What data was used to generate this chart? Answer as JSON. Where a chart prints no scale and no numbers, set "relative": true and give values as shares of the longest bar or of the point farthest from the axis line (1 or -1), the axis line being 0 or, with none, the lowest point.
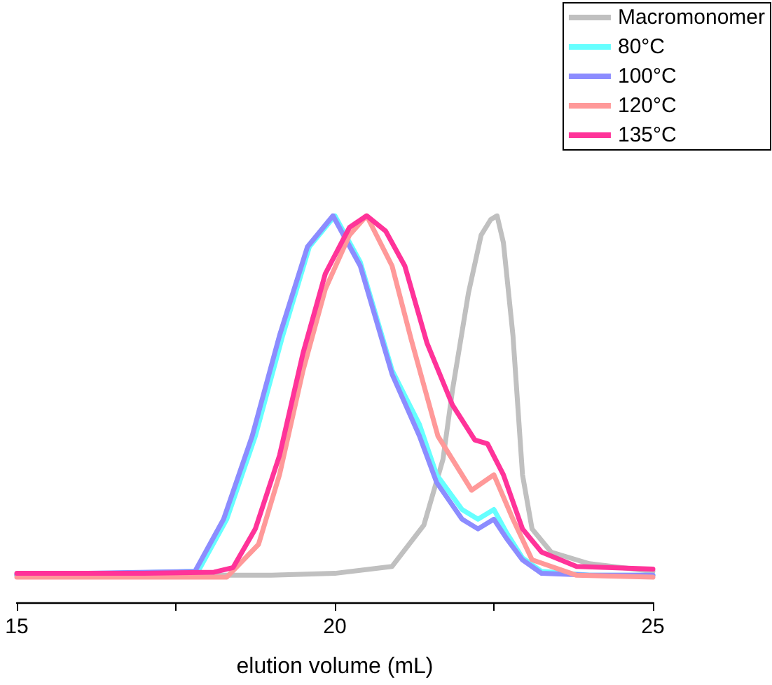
{
  "chart_data": {
    "type": "line",
    "relative": true,
    "xlabel": "elution volume (mL)",
    "xlim": [
      15,
      25
    ],
    "xticks": [
      15,
      {
        "value": 17.5,
        "label": null
      },
      20,
      {
        "value": 22.5,
        "label": null
      },
      25
    ],
    "legend": "top right",
    "grid": false,
    "marker": "none",
    "line_style": "solid",
    "series": [
      {
        "name": "Macromonomer",
        "color": "#c0c0c0",
        "x": [
          15,
          19,
          20,
          20.9,
          21.4,
          21.7,
          21.85,
          22.1,
          22.3,
          22.45,
          22.55,
          22.65,
          22.8,
          22.95,
          23.1,
          23.4,
          24,
          25
        ],
        "values": [
          0.07,
          0.07,
          0.075,
          0.093,
          0.2,
          0.37,
          0.55,
          0.8,
          0.95,
          0.99,
          1,
          0.93,
          0.69,
          0.33,
          0.19,
          0.13,
          0.1,
          0.08
        ]
      },
      {
        "name": "80°C",
        "color": "#66ffff",
        "x": [
          15,
          17.85,
          18.3,
          18.75,
          19.18,
          19.6,
          20,
          20.4,
          20.9,
          21.33,
          21.6,
          22,
          22.25,
          22.5,
          22.7,
          22.95,
          23.25,
          24,
          25
        ],
        "values": [
          0.07,
          0.08,
          0.215,
          0.43,
          0.69,
          0.92,
          1,
          0.88,
          0.6,
          0.46,
          0.33,
          0.24,
          0.215,
          0.24,
          0.18,
          0.115,
          0.08,
          0.07,
          0.07
        ]
      },
      {
        "name": "100°C",
        "color": "#8c8cff",
        "x": [
          15,
          17.8,
          18.25,
          18.7,
          19.13,
          19.57,
          19.97,
          20.4,
          20.9,
          21.33,
          21.6,
          22,
          22.25,
          22.5,
          22.7,
          22.95,
          23.25,
          24,
          25
        ],
        "values": [
          0.072,
          0.08,
          0.215,
          0.43,
          0.69,
          0.92,
          1,
          0.87,
          0.59,
          0.43,
          0.31,
          0.215,
          0.19,
          0.215,
          0.165,
          0.11,
          0.075,
          0.07,
          0.07
        ]
      },
      {
        "name": "120°C",
        "color": "#ff9999",
        "x": [
          15,
          17,
          18.3,
          18.8,
          19.13,
          19.5,
          19.85,
          20.23,
          20.5,
          20.9,
          21.2,
          21.62,
          22.15,
          22.5,
          22.8,
          23.1,
          23.8,
          25
        ],
        "values": [
          0.065,
          0.065,
          0.065,
          0.15,
          0.33,
          0.6,
          0.81,
          0.95,
          1,
          0.87,
          0.68,
          0.43,
          0.29,
          0.33,
          0.215,
          0.11,
          0.07,
          0.065
        ]
      },
      {
        "name": "135°C",
        "color": "#ff3399",
        "x": [
          15,
          17,
          18.1,
          18.4,
          18.75,
          19.13,
          19.5,
          19.85,
          20.23,
          20.5,
          20.8,
          21.1,
          21.45,
          21.85,
          22.2,
          22.4,
          22.65,
          22.95,
          23.25,
          23.8,
          25
        ],
        "values": [
          0.075,
          0.075,
          0.078,
          0.09,
          0.19,
          0.38,
          0.645,
          0.85,
          0.97,
          1,
          0.96,
          0.87,
          0.67,
          0.51,
          0.42,
          0.41,
          0.33,
          0.19,
          0.13,
          0.093,
          0.086
        ]
      }
    ]
  }
}
